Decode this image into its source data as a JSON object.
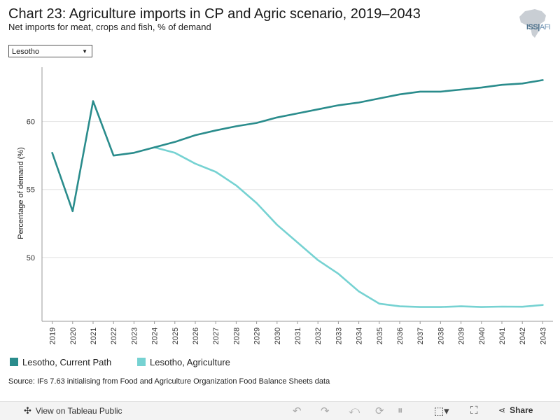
{
  "header": {
    "title": "Chart 23: Agriculture imports in CP and Agric scenario, 2019–2043",
    "subtitle": "Net imports for meat, crops and fish, % of demand",
    "logo_text": "ISS",
    "logo_suffix": "AFI"
  },
  "filter": {
    "selected": "Lesotho",
    "caret": "▼"
  },
  "legend": {
    "items": [
      {
        "label": "Lesotho, Current Path",
        "color": "#2a8c8c"
      },
      {
        "label": "Lesotho, Agriculture",
        "color": "#76d2d2"
      }
    ]
  },
  "source": "Source: IFs 7.63 initialising from Food and Agriculture Organization Food Balance Sheets data",
  "footer": {
    "view_label": "View on Tableau Public",
    "share_label": "Share",
    "icons": [
      "tableau-icon",
      "undo-icon",
      "redo-icon",
      "revert-icon",
      "refresh-icon",
      "pause-icon",
      "download-icon",
      "fullscreen-icon",
      "share-icon"
    ]
  },
  "chart_data": {
    "type": "line",
    "title": "Chart 23: Agriculture imports in CP and Agric scenario, 2019–2043",
    "ylabel": "Percentage of demand (%)",
    "xlabel": "",
    "ylim": [
      45.3,
      64.0
    ],
    "yticks": [
      50,
      55,
      60
    ],
    "x": [
      "2019",
      "2020",
      "2021",
      "2022",
      "2023",
      "2024",
      "2025",
      "2026",
      "2027",
      "2028",
      "2029",
      "2030",
      "2031",
      "2032",
      "2033",
      "2034",
      "2035",
      "2036",
      "2037",
      "2038",
      "2039",
      "2040",
      "2041",
      "2042",
      "2043"
    ],
    "series": [
      {
        "name": "Lesotho, Current Path",
        "color": "#2a8c8c",
        "values": [
          57.7,
          53.4,
          61.5,
          57.5,
          57.7,
          58.1,
          58.5,
          59.0,
          59.35,
          59.65,
          59.9,
          60.3,
          60.6,
          60.9,
          61.2,
          61.4,
          61.7,
          62.0,
          62.2,
          62.2,
          62.35,
          62.5,
          62.7,
          62.8,
          63.05
        ]
      },
      {
        "name": "Lesotho, Agriculture",
        "color": "#76d2d2",
        "values": [
          null,
          null,
          null,
          null,
          null,
          58.1,
          57.7,
          56.9,
          56.3,
          55.3,
          54.0,
          52.4,
          51.1,
          49.8,
          48.8,
          47.5,
          46.6,
          46.4,
          46.35,
          46.35,
          46.4,
          46.35,
          46.38,
          46.37,
          46.5
        ]
      }
    ],
    "legend_position": "bottom-left",
    "grid": true
  }
}
